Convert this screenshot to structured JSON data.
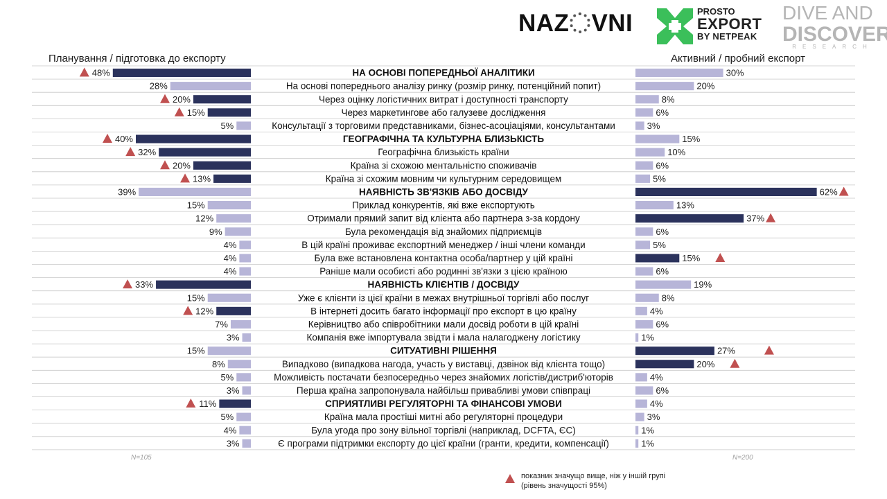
{
  "logos": {
    "nazovni_left": "NAZ",
    "nazovni_right": "VNI",
    "prosto_export_line1": "PROSTO",
    "prosto_export_line2": "EXPORT",
    "prosto_export_line3": "BY NETPEAK",
    "dive_line1": "DIVE AND",
    "dive_line2": "DISCOVERY",
    "dive_line3": "RESEARCH"
  },
  "headers": {
    "left": "Планування / підготовка до експорту",
    "right": "Активний / пробний експорт"
  },
  "footnote": {
    "n_left": "N=105",
    "n_right": "N=200",
    "note_line1": "показник значущо вище, ніж у іншій групі",
    "note_line2": "(рівень значущості 95%)"
  },
  "colors": {
    "dark": "#2b325c",
    "light": "#b7b5d8",
    "triangle": "#c05050",
    "divider": "#c8c8c8"
  },
  "chart_data": {
    "type": "bar",
    "unit": "%",
    "series": [
      {
        "name": "Планування / підготовка до експорту"
      },
      {
        "name": "Активний / пробний експорт"
      }
    ],
    "rows": [
      {
        "label": "НА ОСНОВІ ПОПЕРЕДНЬОЇ АНАЛІТИКИ",
        "category": true,
        "left": 48,
        "right": 30,
        "left_dark": true,
        "right_dark": false,
        "left_sig": true,
        "right_sig": false
      },
      {
        "label": "На основі попереднього аналізу ринку (розмір ринку, потенційний попит)",
        "left": 28,
        "right": 20,
        "left_dark": false,
        "right_dark": false,
        "left_sig": false,
        "right_sig": false
      },
      {
        "label": "Через оцінку логістичних витрат і доступності транспорту",
        "left": 20,
        "right": 8,
        "left_dark": true,
        "right_dark": false,
        "left_sig": true,
        "right_sig": false
      },
      {
        "label": "Через маркетингове або галузеве дослідження",
        "left": 15,
        "right": 6,
        "left_dark": true,
        "right_dark": false,
        "left_sig": true,
        "right_sig": false
      },
      {
        "label": "Консультації з торговими представниками, бізнес-асоціаціями, консультантами",
        "left": 5,
        "right": 3,
        "left_dark": false,
        "right_dark": false,
        "left_sig": false,
        "right_sig": false
      },
      {
        "label": "ГЕОГРАФІЧНА ТА КУЛЬТУРНА БЛИЗЬКІСТЬ",
        "category": true,
        "left": 40,
        "right": 15,
        "left_dark": true,
        "right_dark": false,
        "left_sig": true,
        "right_sig": false
      },
      {
        "label": "Географічна близькість країни",
        "left": 32,
        "right": 10,
        "left_dark": true,
        "right_dark": false,
        "left_sig": true,
        "right_sig": false
      },
      {
        "label": "Країна зі схожою ментальністю споживачів",
        "left": 20,
        "right": 6,
        "left_dark": true,
        "right_dark": false,
        "left_sig": true,
        "right_sig": false
      },
      {
        "label": "Країна зі схожим мовним чи культурним середовищем",
        "left": 13,
        "right": 5,
        "left_dark": true,
        "right_dark": false,
        "left_sig": true,
        "right_sig": false
      },
      {
        "label": "НАЯВНІСТЬ ЗВ'ЯЗКІВ АБО ДОСВІДУ",
        "category": true,
        "left": 39,
        "right": 62,
        "left_dark": false,
        "right_dark": true,
        "left_sig": false,
        "right_sig": true
      },
      {
        "label": "Приклад конкурентів, які вже експортують",
        "left": 15,
        "right": 13,
        "left_dark": false,
        "right_dark": false,
        "left_sig": false,
        "right_sig": false
      },
      {
        "label": "Отримали прямий запит від клієнта або партнера з-за кордону",
        "left": 12,
        "right": 37,
        "left_dark": false,
        "right_dark": true,
        "left_sig": false,
        "right_sig": true
      },
      {
        "label": "Була рекомендація від знайомих підприємців",
        "left": 9,
        "right": 6,
        "left_dark": false,
        "right_dark": false,
        "left_sig": false,
        "right_sig": false
      },
      {
        "label": "В цій країні проживає експортний менеджер / інші члени команди",
        "left": 4,
        "right": 5,
        "left_dark": false,
        "right_dark": false,
        "left_sig": false,
        "right_sig": false
      },
      {
        "label": "Була вже встановлена контактна особа/партнер у цій країні",
        "left": 4,
        "right": 15,
        "left_dark": false,
        "right_dark": true,
        "left_sig": false,
        "right_sig": true
      },
      {
        "label": "Раніше мали особисті або родинні зв'язки з цією країною",
        "left": 4,
        "right": 6,
        "left_dark": false,
        "right_dark": false,
        "left_sig": false,
        "right_sig": false
      },
      {
        "label": "НАЯВНІСТЬ КЛІЄНТІВ / ДОСВІДУ",
        "category": true,
        "left": 33,
        "right": 19,
        "left_dark": true,
        "right_dark": false,
        "left_sig": true,
        "right_sig": false
      },
      {
        "label": "Уже є клієнти із цієї країни в межах внутрішньої торгівлі або послуг",
        "left": 15,
        "right": 8,
        "left_dark": false,
        "right_dark": false,
        "left_sig": false,
        "right_sig": false
      },
      {
        "label": "В інтернеті досить багато інформації про експорт в цю країну",
        "left": 12,
        "right": 4,
        "left_dark": true,
        "right_dark": false,
        "left_sig": true,
        "right_sig": false
      },
      {
        "label": "Керівництво або співробітники мали досвід роботи в цій країні",
        "left": 7,
        "right": 6,
        "left_dark": false,
        "right_dark": false,
        "left_sig": false,
        "right_sig": false
      },
      {
        "label": "Компанія вже імпортувала звідти і мала налагоджену логістику",
        "left": 3,
        "right": 1,
        "left_dark": false,
        "right_dark": false,
        "left_sig": false,
        "right_sig": false
      },
      {
        "label": "СИТУАТИВНІ РІШЕННЯ",
        "category": true,
        "left": 15,
        "right": 27,
        "left_dark": false,
        "right_dark": true,
        "left_sig": false,
        "right_sig": true
      },
      {
        "label": "Випадково (випадкова нагода, участь у виставці, дзвінок від клієнта тощо)",
        "left": 8,
        "right": 20,
        "left_dark": false,
        "right_dark": true,
        "left_sig": false,
        "right_sig": true
      },
      {
        "label": "Можливість постачати безпосередньо через знайомих логістів/дистриб'юторів",
        "left": 5,
        "right": 4,
        "left_dark": false,
        "right_dark": false,
        "left_sig": false,
        "right_sig": false
      },
      {
        "label": "Перша країна запропонувала найбільш привабливі умови співпраці",
        "left": 3,
        "right": 6,
        "left_dark": false,
        "right_dark": false,
        "left_sig": false,
        "right_sig": false
      },
      {
        "label": "СПРИЯТЛИВІ РЕГУЛЯТОРНІ ТА ФІНАНСОВІ УМОВИ",
        "category": true,
        "left": 11,
        "right": 4,
        "left_dark": true,
        "right_dark": false,
        "left_sig": true,
        "right_sig": false
      },
      {
        "label": "Країна мала простіші митні або регуляторні процедури",
        "left": 5,
        "right": 3,
        "left_dark": false,
        "right_dark": false,
        "left_sig": false,
        "right_sig": false
      },
      {
        "label": "Була угода про зону вільної торгівлі (наприклад, DCFTA, ЄС)",
        "left": 4,
        "right": 1,
        "left_dark": false,
        "right_dark": false,
        "left_sig": false,
        "right_sig": false
      },
      {
        "label": "Є програми підтримки експорту до цієї країни (гранти, кредити, компенсації)",
        "left": 3,
        "right": 1,
        "left_dark": false,
        "right_dark": false,
        "left_sig": false,
        "right_sig": false
      }
    ]
  }
}
